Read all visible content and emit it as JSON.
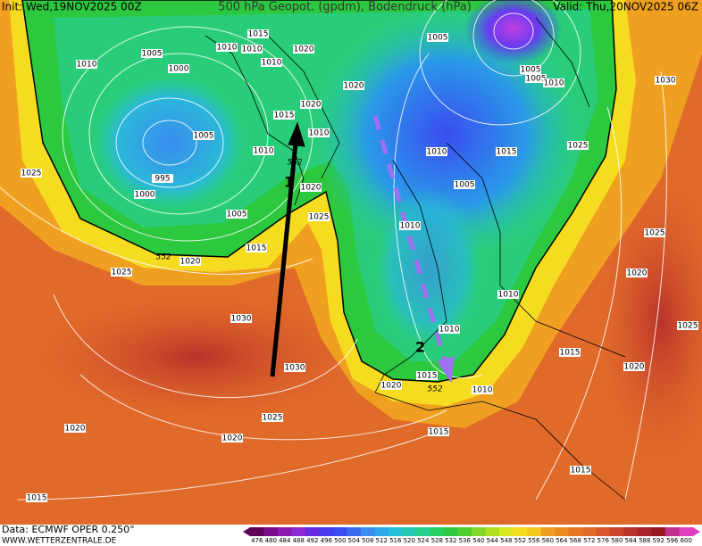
{
  "header": {
    "init": "Init: Wed,19NOV2025 00Z",
    "title": "500 hPa Geopot. (gpdm), Bodendruck (hPa)",
    "valid": "Valid: Thu,20NOV2025 06Z"
  },
  "footer": {
    "data": "Data: ECMWF OPER 0.250°",
    "site": "WWW.WETTERZENTRALE.DE"
  },
  "arrows": [
    {
      "label": "1"
    },
    {
      "label": "2"
    }
  ],
  "isobar_labels": [
    "1015",
    "1010",
    "1010",
    "1010",
    "1020",
    "1005",
    "1010",
    "1000",
    "1005",
    "1005",
    "1005",
    "1010",
    "1030",
    "1020",
    "1020",
    "1015",
    "1010",
    "1005",
    "1010",
    "1025",
    "1010",
    "1015",
    "995",
    "1000",
    "1020",
    "1025",
    "1005",
    "1005",
    "1025",
    "1010",
    "1015",
    "1020",
    "1025",
    "1025",
    "1020",
    "1010",
    "1030",
    "1010",
    "1025",
    "1015",
    "1030",
    "1020",
    "1015",
    "1020",
    "1010",
    "1025",
    "1015",
    "1020",
    "1020",
    "1015",
    "1015"
  ],
  "contour_labels": [
    "552",
    "552",
    "552"
  ],
  "color_scale": [
    "476",
    "480",
    "484",
    "488",
    "492",
    "496",
    "500",
    "504",
    "508",
    "512",
    "516",
    "520",
    "524",
    "528",
    "532",
    "536",
    "540",
    "544",
    "548",
    "552",
    "556",
    "560",
    "564",
    "568",
    "572",
    "576",
    "580",
    "584",
    "588",
    "592",
    "596",
    "600"
  ]
}
